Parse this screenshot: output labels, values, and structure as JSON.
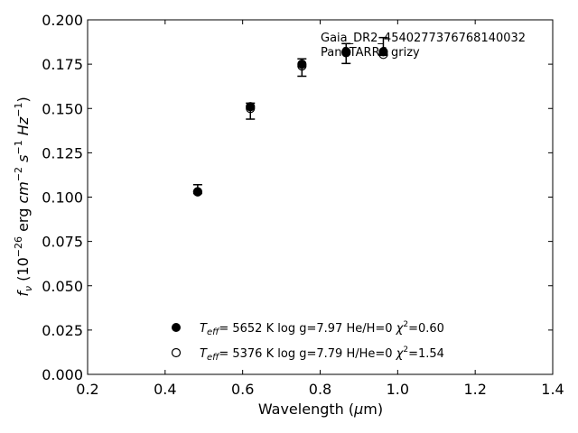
{
  "chart_data": {
    "type": "scatter",
    "title": "",
    "xlabel": "Wavelength (μm)",
    "ylabel": "fν (10⁻²⁶ erg cm⁻² s⁻¹ Hz⁻¹)",
    "xlim": [
      0.2,
      1.4
    ],
    "ylim": [
      0.0,
      0.2
    ],
    "xticks": [
      "0.2",
      "0.4",
      "0.6",
      "0.8",
      "1.0",
      "1.2",
      "1.4"
    ],
    "yticks": [
      "0.000",
      "0.025",
      "0.050",
      "0.075",
      "0.100",
      "0.125",
      "0.150",
      "0.175",
      "0.200"
    ],
    "grid": false,
    "annotation": {
      "line1": "Gaia_DR2_4540277376768140032",
      "line2": "PanSTARRS grizy"
    },
    "observed": {
      "x": [
        0.484,
        0.62,
        0.753,
        0.867,
        0.963
      ],
      "y": [
        0.104,
        0.1497,
        0.174,
        0.1816,
        0.186
      ],
      "yerr_low": [
        0.102,
        0.144,
        0.1682,
        0.1754,
        0.18
      ],
      "yerr_high": [
        0.107,
        0.153,
        0.178,
        0.1866,
        0.19
      ]
    },
    "series": [
      {
        "label": "T_eff=  5652 K  log g=7.97  He/H=0  χ²=0.60",
        "marker": "filled",
        "x": [
          0.484,
          0.62,
          0.753,
          0.867,
          0.963
        ],
        "y": [
          0.103,
          0.151,
          0.175,
          0.1815,
          0.182
        ]
      },
      {
        "label": "T_eff=  5376 K  log g=7.79  H/He=0  χ²=1.54",
        "marker": "open",
        "x": [
          0.484,
          0.62,
          0.753,
          0.867,
          0.963
        ],
        "y": [
          0.103,
          0.15,
          0.174,
          0.182,
          0.1805
        ]
      }
    ],
    "legend": {
      "placement": "lower-center",
      "entries": [
        {
          "teff": "5652 K",
          "logg": "log g=7.97",
          "comp": "He/H=0",
          "chi": "=0.60"
        },
        {
          "teff": "5376 K",
          "logg": "log g=7.79",
          "comp": "H/He=0",
          "chi": "=1.54"
        }
      ]
    }
  }
}
